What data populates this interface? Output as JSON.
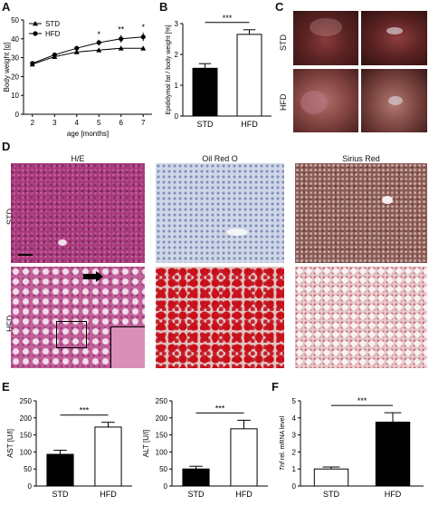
{
  "figure": {
    "panel_labels": {
      "a": "A",
      "b": "B",
      "c": "C",
      "d": "D",
      "e": "E",
      "f": "F"
    },
    "legend": {
      "std": "STD",
      "hfd": "HFD"
    },
    "photo_rows": {
      "std": "STD",
      "hfd": "HFD"
    },
    "histology": {
      "columns": [
        "H/E",
        "Oil Red O",
        "Sirius Red"
      ],
      "rows": [
        "STD",
        "HFD"
      ]
    }
  },
  "chart_data": [
    {
      "id": "A",
      "type": "line",
      "xlabel": "age [months]",
      "ylabel": "Body weight [g]",
      "x": [
        2,
        3,
        4,
        5,
        6,
        7
      ],
      "xlim": [
        1.6,
        7.4
      ],
      "ylim": [
        0,
        50
      ],
      "yticks": [
        0,
        10,
        20,
        30,
        40,
        50
      ],
      "series": [
        {
          "name": "STD",
          "values": [
            26.5,
            30.5,
            33,
            34,
            35,
            35
          ],
          "errors": [
            0.8,
            0.8,
            0.8,
            0.8,
            1,
            1
          ],
          "marker": "triangle"
        },
        {
          "name": "HFD",
          "values": [
            27,
            31.5,
            35,
            38,
            40,
            41
          ],
          "errors": [
            0.8,
            1,
            1.2,
            1.5,
            2,
            2.2
          ],
          "marker": "circle"
        }
      ],
      "annotations": [
        {
          "x": 5,
          "text": "*"
        },
        {
          "x": 6,
          "text": "**"
        },
        {
          "x": 7,
          "text": "*"
        }
      ],
      "legend_position": "top-left"
    },
    {
      "id": "B",
      "type": "bar",
      "categories": [
        "STD",
        "HFD"
      ],
      "values": [
        1.55,
        2.65
      ],
      "errors": [
        0.15,
        0.15
      ],
      "fills": [
        "#000000",
        "#ffffff"
      ],
      "ylabel": "Epididymal fat / body weight [%]",
      "ylim": [
        0,
        3
      ],
      "yticks": [
        0,
        1,
        2,
        3
      ],
      "significance": "***"
    },
    {
      "id": "E1",
      "type": "bar",
      "categories": [
        "STD",
        "HFD"
      ],
      "values": [
        93,
        173
      ],
      "errors": [
        12,
        14
      ],
      "fills": [
        "#000000",
        "#ffffff"
      ],
      "ylabel": "AST [U/l]",
      "ylim": [
        0,
        250
      ],
      "yticks": [
        0,
        50,
        100,
        150,
        200,
        250
      ],
      "significance": "***"
    },
    {
      "id": "E2",
      "type": "bar",
      "categories": [
        "STD",
        "HFD"
      ],
      "values": [
        50,
        168
      ],
      "errors": [
        8,
        25
      ],
      "fills": [
        "#000000",
        "#ffffff"
      ],
      "ylabel": "ALT [U/l]",
      "ylim": [
        0,
        250
      ],
      "yticks": [
        0,
        50,
        100,
        150,
        200,
        250
      ],
      "significance": "***"
    },
    {
      "id": "F",
      "type": "bar",
      "categories": [
        "STD",
        "HFD"
      ],
      "values": [
        1,
        3.75
      ],
      "errors": [
        0.12,
        0.55
      ],
      "fills": [
        "#ffffff",
        "#000000"
      ],
      "ylabel": "Tnf rel. mRNA level",
      "ylim": [
        0,
        5
      ],
      "yticks": [
        0,
        1,
        2,
        3,
        4,
        5
      ],
      "significance": "***"
    }
  ]
}
